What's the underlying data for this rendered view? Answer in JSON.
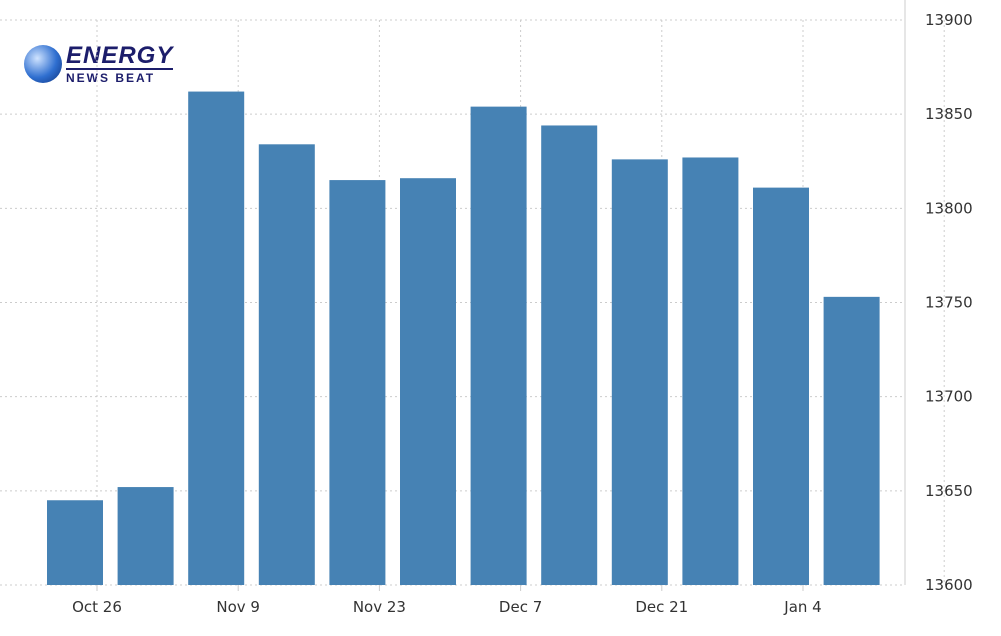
{
  "logo": {
    "line1": "ENERGY",
    "line2": "NEWS BEAT"
  },
  "chart_data": {
    "type": "bar",
    "title": "",
    "xlabel": "",
    "ylabel": "",
    "values": [
      13645,
      13652,
      13862,
      13834,
      13815,
      13816,
      13854,
      13844,
      13826,
      13827,
      13811,
      13753
    ],
    "x_tick_labels": [
      "Oct 26",
      "Nov 9",
      "Nov 23",
      "Dec 7",
      "Dec 21",
      "Jan 4"
    ],
    "y_ticks": [
      13600,
      13650,
      13700,
      13750,
      13800,
      13850,
      13900
    ],
    "ylim": [
      13600,
      13900
    ],
    "y_axis_side": "right",
    "grid": true,
    "bar_color": "#4682b4"
  }
}
